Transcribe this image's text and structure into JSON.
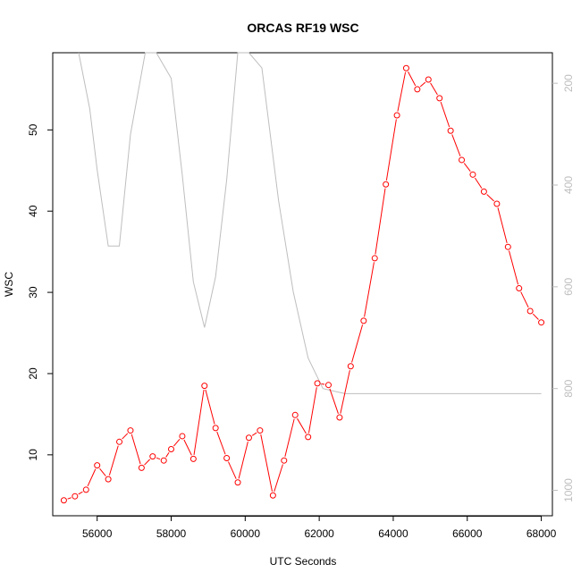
{
  "chart_data": {
    "type": "line",
    "title": "ORCAS RF19 WSC",
    "xlabel": "UTC Seconds",
    "ylabel": "WSC",
    "xlim": [
      54800,
      68300
    ],
    "ylim": [
      2.5,
      59.5
    ],
    "y2lim": [
      1050,
      140
    ],
    "x_ticks": [
      56000,
      58000,
      60000,
      62000,
      64000,
      66000,
      68000
    ],
    "y_ticks": [
      10,
      20,
      30,
      40,
      50
    ],
    "y2_ticks": [
      200,
      400,
      600,
      800,
      1000
    ],
    "y2_reversed": true,
    "grid": false,
    "series": [
      {
        "axis": "left",
        "color": "#ff0000",
        "marker": "open-circle",
        "x": [
          55100,
          55400,
          55700,
          56000,
          56300,
          56600,
          56900,
          57200,
          57500,
          57800,
          58000,
          58300,
          58600,
          58900,
          59200,
          59500,
          59800,
          60100,
          60400,
          60750,
          61050,
          61350,
          61700,
          61950,
          62250,
          62550,
          62850,
          63200,
          63500,
          63800,
          64100,
          64350,
          64650,
          64950,
          65250,
          65550,
          65850,
          66150,
          66450,
          66800,
          67100,
          67400,
          67700,
          68000
        ],
        "values": [
          4.4,
          4.9,
          5.7,
          8.7,
          7.0,
          11.6,
          13.0,
          8.4,
          9.8,
          9.3,
          10.7,
          12.3,
          9.5,
          18.5,
          13.3,
          9.6,
          6.6,
          12.1,
          13.0,
          5.0,
          9.3,
          14.9,
          12.2,
          18.8,
          18.6,
          14.6,
          20.9,
          26.5,
          34.2,
          43.3,
          51.8,
          57.6,
          55.0,
          56.2,
          53.9,
          49.9,
          46.3,
          44.5,
          42.4,
          40.9,
          35.6,
          30.5,
          27.7,
          26.3
        ]
      },
      {
        "axis": "right",
        "color": "#bebebe",
        "marker": "none",
        "x": [
          55500,
          55800,
          56000,
          56300,
          56600,
          56900,
          57300,
          57600,
          58000,
          58300,
          58600,
          58900,
          59200,
          59500,
          59800,
          60100,
          60450,
          60900,
          61300,
          61700,
          62100,
          62700,
          63500,
          64500,
          65500,
          66500,
          67500,
          68000
        ],
        "values": [
          140,
          250,
          370,
          520,
          520,
          300,
          140,
          140,
          190,
          380,
          590,
          680,
          580,
          390,
          130,
          130,
          170,
          430,
          610,
          740,
          800,
          810,
          810,
          810,
          810,
          810,
          810,
          810
        ]
      }
    ]
  }
}
